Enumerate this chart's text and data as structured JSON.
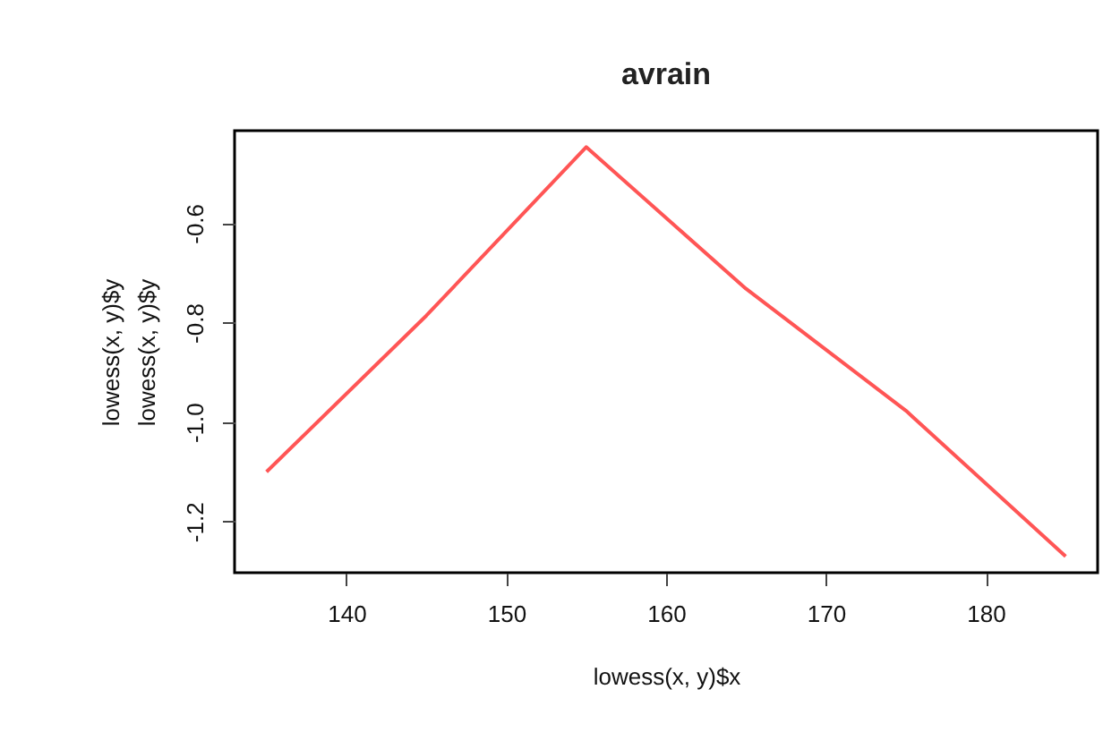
{
  "chart_data": {
    "type": "line",
    "title": "avrain",
    "xlabel": "lowess(x, y)$x",
    "ylabel": "lowess(x, y)$y",
    "annotations": [
      "lowess(x, y)$y"
    ],
    "x": [
      135,
      145,
      155,
      165,
      175,
      185
    ],
    "series": [
      {
        "color": "#ff5555",
        "values": [
          -1.1,
          -0.786,
          -0.447,
          -0.732,
          -0.977,
          -1.27
        ]
      }
    ],
    "xlim": [
      133,
      187
    ],
    "ylim": [
      -1.303,
      -0.414
    ],
    "xticks": [
      140,
      150,
      160,
      170,
      180
    ],
    "yticks": [
      {
        "value": -1.2,
        "label": "-1.2"
      },
      {
        "value": -1.0,
        "label": "-1.0"
      },
      {
        "value": -0.8,
        "label": "-0.8"
      },
      {
        "value": -0.6,
        "label": "-0.6"
      }
    ],
    "grid": false,
    "legend": false,
    "marker": "none",
    "line_style": "solid"
  }
}
